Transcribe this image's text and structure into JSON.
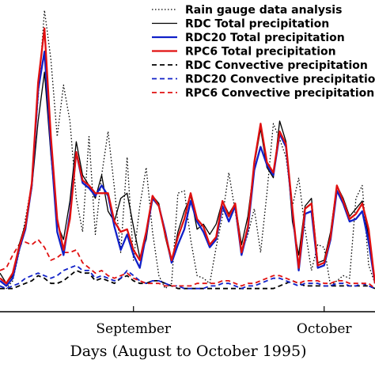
{
  "chart_data": {
    "type": "line",
    "xlabel": "Days (August to October 1995)",
    "ylabel": "",
    "xlim": [
      11,
      70
    ],
    "ylim": [
      -0.8,
      11.3
    ],
    "x_ticks": [
      {
        "x": 32,
        "label": "September"
      },
      {
        "x": 62,
        "label": "October"
      }
    ],
    "legend_position": "top-right",
    "x": [
      11,
      12,
      13,
      14,
      15,
      16,
      17,
      18,
      19,
      20,
      21,
      22,
      23,
      24,
      25,
      26,
      27,
      28,
      29,
      30,
      31,
      32,
      33,
      34,
      35,
      36,
      37,
      38,
      39,
      40,
      41,
      42,
      43,
      44,
      45,
      46,
      47,
      48,
      49,
      50,
      51,
      52,
      53,
      54,
      55,
      56,
      57,
      58,
      59,
      60,
      61,
      62,
      63,
      64,
      65,
      66,
      67,
      68,
      69,
      70
    ],
    "series": [
      {
        "name": "Rain gauge data analysis",
        "color": "#000000",
        "dash": "1.5 2.5",
        "width": 1.3,
        "values": [
          0.2,
          0.1,
          0.4,
          1.5,
          2.8,
          4.2,
          7.5,
          10.9,
          9.0,
          6.0,
          8.0,
          6.6,
          3.6,
          2.3,
          6.0,
          2.2,
          4.5,
          6.2,
          4.0,
          1.5,
          5.2,
          1.2,
          3.3,
          4.8,
          2.3,
          0.6,
          0.1,
          0.3,
          3.8,
          3.9,
          2.0,
          0.6,
          0.5,
          0.3,
          1.7,
          2.9,
          4.6,
          3.1,
          1.5,
          2.2,
          3.2,
          1.5,
          3.8,
          6.5,
          5.9,
          5.2,
          3.3,
          4.4,
          2.4,
          0.8,
          1.8,
          1.7,
          0.2,
          0.4,
          0.6,
          0.5,
          3.6,
          4.1,
          1.0,
          0.3
        ]
      },
      {
        "name": "RDC    Total precipitation",
        "color": "#000000",
        "dash": "",
        "width": 1.3,
        "values": [
          0.7,
          0.3,
          0.6,
          1.8,
          2.6,
          4.0,
          6.6,
          8.5,
          5.3,
          2.6,
          2.0,
          3.5,
          5.8,
          4.5,
          4.1,
          3.6,
          4.5,
          3.1,
          2.7,
          3.6,
          3.8,
          2.5,
          1.3,
          2.0,
          3.7,
          3.4,
          2.1,
          1.1,
          2.3,
          3.1,
          3.7,
          2.4,
          2.6,
          2.2,
          2.6,
          3.5,
          3.0,
          3.4,
          1.8,
          2.9,
          4.9,
          6.3,
          4.8,
          4.4,
          6.6,
          5.8,
          2.7,
          1.4,
          3.3,
          3.6,
          1.1,
          1.2,
          2.3,
          4.1,
          3.6,
          2.9,
          3.2,
          3.5,
          2.1,
          0.3
        ]
      },
      {
        "name": "RDC20  Total precipitation",
        "color": "#1020c8",
        "dash": "",
        "width": 2.3,
        "values": [
          0.4,
          0.2,
          0.5,
          1.6,
          2.4,
          4.1,
          7.8,
          9.3,
          5.6,
          2.3,
          1.4,
          3.0,
          5.4,
          4.2,
          4.0,
          3.7,
          4.1,
          3.7,
          2.5,
          1.6,
          2.2,
          1.4,
          0.9,
          2.2,
          3.6,
          3.3,
          2.3,
          1.1,
          1.8,
          2.4,
          3.5,
          2.7,
          2.3,
          1.7,
          2.0,
          3.3,
          2.7,
          3.3,
          1.4,
          2.4,
          4.7,
          5.6,
          4.9,
          4.5,
          6.1,
          5.6,
          3.1,
          0.8,
          3.0,
          3.1,
          0.9,
          1.0,
          2.0,
          3.9,
          3.4,
          2.7,
          2.8,
          3.1,
          1.9,
          0.3
        ]
      },
      {
        "name": "RPC6    Total precipitation",
        "color": "#e01010",
        "dash": "",
        "width": 2.3,
        "values": [
          0.5,
          0.3,
          0.7,
          1.7,
          2.5,
          4.2,
          8.1,
          10.2,
          6.0,
          2.8,
          1.6,
          2.8,
          5.4,
          4.3,
          4.1,
          3.8,
          3.8,
          3.8,
          2.7,
          2.3,
          2.4,
          1.6,
          1.2,
          2.3,
          3.7,
          3.3,
          2.2,
          1.2,
          2.1,
          2.8,
          3.8,
          2.8,
          2.5,
          1.8,
          2.1,
          3.5,
          2.9,
          3.4,
          1.5,
          2.5,
          5.0,
          6.5,
          5.0,
          4.6,
          6.2,
          5.7,
          3.2,
          0.9,
          3.2,
          3.4,
          1.0,
          1.1,
          2.1,
          4.1,
          3.5,
          2.8,
          3.0,
          3.4,
          2.4,
          0.3
        ]
      },
      {
        "name": "RDC    Convective precipitation",
        "color": "#000000",
        "dash": "6 4",
        "width": 1.8,
        "values": [
          0.1,
          0.1,
          0.1,
          0.2,
          0.3,
          0.4,
          0.6,
          0.5,
          0.3,
          0.3,
          0.4,
          0.6,
          0.8,
          0.7,
          0.7,
          0.4,
          0.5,
          0.4,
          0.3,
          0.5,
          0.6,
          0.4,
          0.3,
          0.3,
          0.4,
          0.4,
          0.3,
          0.2,
          0.1,
          0.1,
          0.1,
          0.1,
          0.1,
          0.1,
          0.1,
          0.1,
          0.1,
          0.1,
          0.1,
          0.1,
          0.1,
          0.1,
          0.1,
          0.1,
          0.2,
          0.3,
          0.4,
          0.3,
          0.2,
          0.2,
          0.2,
          0.2,
          0.2,
          0.2,
          0.2,
          0.2,
          0.2,
          0.2,
          0.2,
          0.1
        ]
      },
      {
        "name": "RDC20  Convective precipitation",
        "color": "#1020c8",
        "dash": "6 4",
        "width": 1.8,
        "values": [
          0.2,
          0.1,
          0.2,
          0.3,
          0.5,
          0.6,
          0.7,
          0.6,
          0.5,
          0.6,
          0.8,
          0.9,
          1.0,
          0.8,
          0.8,
          0.5,
          0.6,
          0.5,
          0.4,
          0.5,
          0.8,
          0.6,
          0.4,
          0.3,
          0.4,
          0.4,
          0.3,
          0.2,
          0.2,
          0.1,
          0.1,
          0.1,
          0.1,
          0.2,
          0.2,
          0.3,
          0.3,
          0.2,
          0.1,
          0.2,
          0.2,
          0.3,
          0.4,
          0.5,
          0.5,
          0.4,
          0.3,
          0.2,
          0.3,
          0.3,
          0.3,
          0.2,
          0.2,
          0.3,
          0.3,
          0.2,
          0.2,
          0.3,
          0.2,
          0.1
        ]
      },
      {
        "name": "RPC6    Convective precipitation",
        "color": "#e01010",
        "dash": "6 4",
        "width": 1.8,
        "values": [
          0.8,
          0.9,
          1.4,
          1.8,
          1.9,
          1.8,
          2.0,
          1.7,
          1.2,
          1.3,
          1.5,
          1.5,
          1.6,
          1.1,
          0.9,
          0.7,
          0.8,
          0.6,
          0.5,
          0.6,
          0.7,
          0.5,
          0.4,
          0.3,
          0.3,
          0.3,
          0.2,
          0.2,
          0.2,
          0.2,
          0.2,
          0.3,
          0.3,
          0.3,
          0.3,
          0.4,
          0.4,
          0.3,
          0.2,
          0.3,
          0.3,
          0.4,
          0.5,
          0.6,
          0.6,
          0.5,
          0.4,
          0.3,
          0.4,
          0.4,
          0.4,
          0.3,
          0.3,
          0.4,
          0.4,
          0.3,
          0.3,
          0.3,
          0.3,
          0.1
        ]
      }
    ]
  }
}
